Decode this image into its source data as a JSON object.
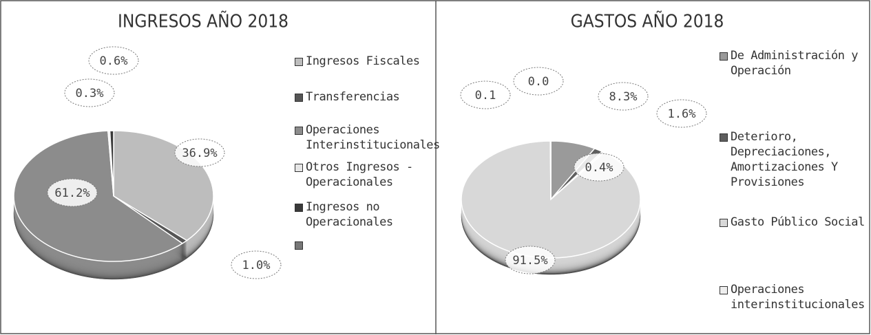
{
  "chart_data": [
    {
      "type": "pie",
      "title": "INGRESOS AÑO 2018",
      "categories": [
        "Ingresos Fiscales",
        "Transferencias",
        "Operaciones Interinstitucionales",
        "Otros Ingresos - Operacionales",
        "Ingresos no Operacionales",
        null
      ],
      "values": [
        36.9,
        1.0,
        61.2,
        0.3,
        0.6,
        null
      ],
      "value_labels": [
        "36.9%",
        "1.0%",
        "61.2%",
        "0.3%",
        "0.6%",
        null
      ],
      "colors": [
        "#bdbdbd",
        "#555555",
        "#8c8c8c",
        "#e6e6e6",
        "#3a3a3a",
        "#777777"
      ]
    },
    {
      "type": "pie",
      "title": "GASTOS AÑO 2018",
      "categories": [
        "De Administración y Operación",
        "Deterioro, Depreciaciones, Amortizaciones Y Provisiones",
        null,
        "Gasto Público Social",
        "Operaciones interinstitucionales",
        null
      ],
      "values": [
        8.3,
        1.6,
        0.4,
        91.5,
        0.1,
        0.0
      ],
      "value_labels": [
        "8.3%",
        "1.6%",
        "0.4%",
        "91.5%",
        "0.1",
        "0.0"
      ],
      "colors": [
        "#9a9a9a",
        "#5e5e5e",
        "#cfcfcf",
        "#d8d8d8",
        "#eeeeee",
        "#444444"
      ]
    }
  ]
}
